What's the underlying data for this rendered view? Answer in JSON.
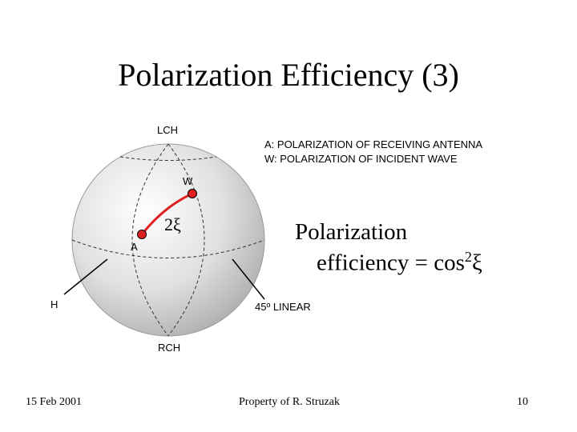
{
  "slide": {
    "title": "Polarization Efficiency (3)"
  },
  "diagram": {
    "lch_label": "LCH",
    "rch_label": "RCH",
    "w_label": "W",
    "a_label": "A",
    "h_label": "H",
    "linear45_label": "45º LINEAR",
    "angle_label": "2ξ",
    "arc_color": "#e02020"
  },
  "legend": {
    "a_text": "A: POLARIZATION OF RECEIVING ANTENNA",
    "w_text": "W: POLARIZATION OF INCIDENT WAVE"
  },
  "efficiency": {
    "line1": "Polarization",
    "line2_prefix": "efficiency = cos",
    "exponent": "2",
    "symbol": "ξ"
  },
  "footer": {
    "date": "15 Feb 2001",
    "property": "Property of R. Struzak",
    "page_number": "10"
  }
}
